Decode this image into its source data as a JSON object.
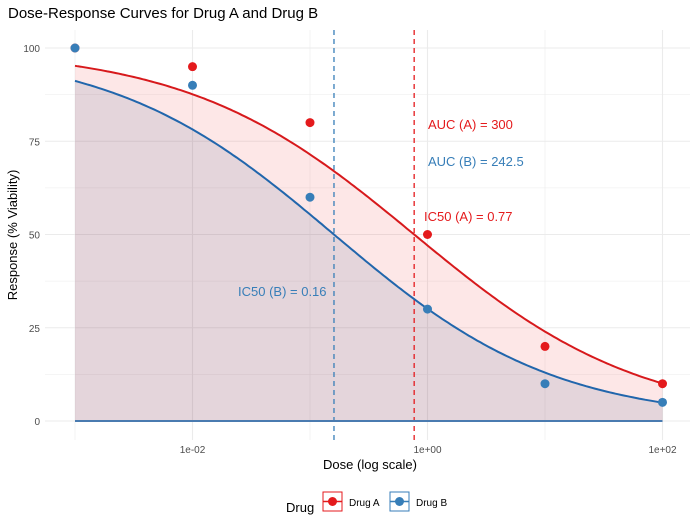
{
  "chart_data": {
    "type": "line",
    "title": "Dose-Response Curves for Drug A and Drug B",
    "xlabel": "Dose (log scale)",
    "ylabel": "Response (% Viability)",
    "x_scale": "log10",
    "xlim": [
      0.001,
      100
    ],
    "ylim": [
      0,
      100
    ],
    "x_ticks": [
      0.01,
      1,
      100
    ],
    "x_tick_labels": [
      "1e-02",
      "1e+00",
      "1e+02"
    ],
    "y_ticks": [
      0,
      25,
      50,
      75,
      100
    ],
    "y_tick_labels": [
      "0",
      "25",
      "50",
      "75",
      "100"
    ],
    "grid": true,
    "legend": {
      "title": "Drug",
      "placement": "bottom"
    },
    "series": [
      {
        "name": "Drug A",
        "color": "#E41A1C",
        "x": [
          0.001,
          0.01,
          0.1,
          1,
          10,
          100
        ],
        "y": [
          100,
          95,
          80,
          50,
          20,
          10
        ],
        "ic50": 0.77,
        "hill": 0.45
      },
      {
        "name": "Drug B",
        "color": "#377EB8",
        "x": [
          0.001,
          0.01,
          0.1,
          1,
          10,
          100
        ],
        "y": [
          100,
          90,
          60,
          30,
          10,
          5
        ],
        "ic50": 0.16,
        "hill": 0.46
      }
    ],
    "annotations": [
      {
        "text": "AUC (A) = 300",
        "color": "#E41A1C"
      },
      {
        "text": "AUC (B) = 242.5",
        "color": "#377EB8"
      },
      {
        "text": "IC50 (A) = 0.77",
        "color": "#E41A1C"
      },
      {
        "text": "IC50 (B) = 0.16",
        "color": "#377EB8"
      }
    ]
  }
}
